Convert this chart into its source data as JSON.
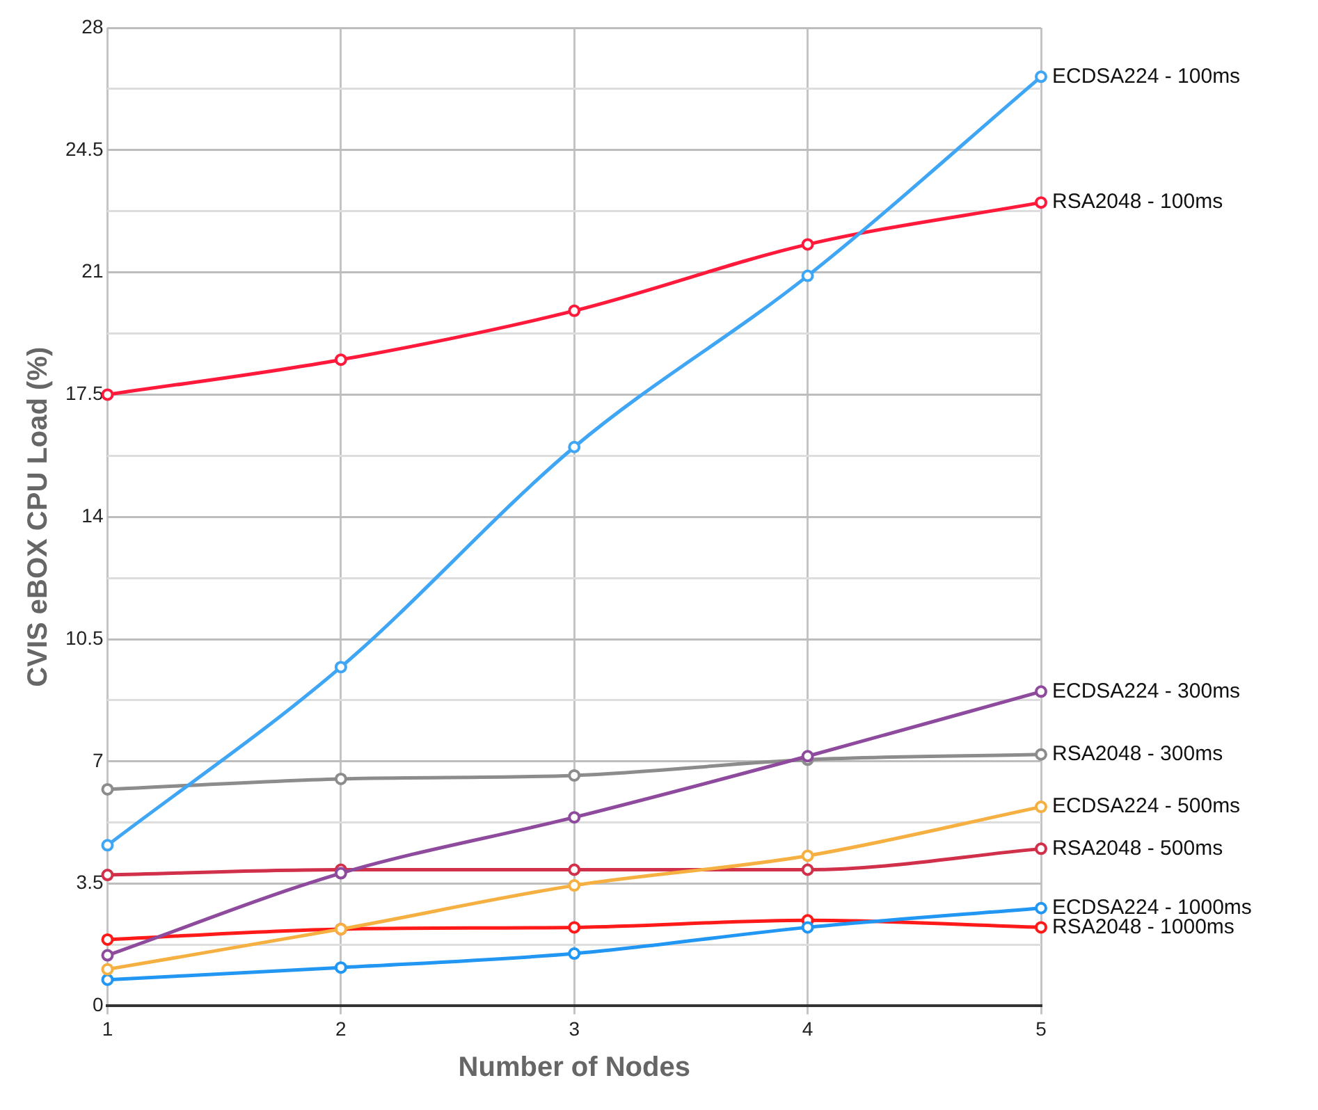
{
  "chart_data": {
    "type": "line",
    "xlabel": "Number of Nodes",
    "ylabel": "CVIS eBOX CPU Load (%)",
    "x": [
      1,
      2,
      3,
      4,
      5
    ],
    "xlim": [
      1,
      5
    ],
    "xticks": [
      1,
      2,
      3,
      4,
      5
    ],
    "ylim": [
      0,
      28
    ],
    "yticks": [
      0,
      {
        "value": 1.75,
        "label": null
      },
      3.5,
      {
        "value": 5.25,
        "label": null
      },
      7,
      {
        "value": 8.75,
        "label": null
      },
      10.5,
      {
        "value": 12.25,
        "label": null
      },
      14,
      {
        "value": 15.75,
        "label": null
      },
      17.5,
      {
        "value": 19.25,
        "label": null
      },
      21,
      {
        "value": 22.75,
        "label": null
      },
      24.5,
      {
        "value": 26.25,
        "label": null
      },
      28
    ],
    "grid": true,
    "legend": false,
    "marker": "circle",
    "line_style": "solid",
    "series": [
      {
        "name": "ECDSA224 - 100ms",
        "color": "#3ea6f5",
        "values": [
          4.6,
          9.7,
          16.0,
          20.9,
          26.6
        ]
      },
      {
        "name": "RSA2048 - 100ms",
        "color": "#ff1a3c",
        "values": [
          17.5,
          18.5,
          19.9,
          21.8,
          23.0
        ]
      },
      {
        "name": "ECDSA224 - 300ms",
        "color": "#8e4a9c",
        "values": [
          1.45,
          3.8,
          5.4,
          7.15,
          9.0
        ]
      },
      {
        "name": "RSA2048 - 300ms",
        "color": "#8c8c8c",
        "values": [
          6.2,
          6.5,
          6.6,
          7.05,
          7.2
        ]
      },
      {
        "name": "ECDSA224 - 500ms",
        "color": "#f5b041",
        "values": [
          1.05,
          2.2,
          3.45,
          4.3,
          5.7
        ]
      },
      {
        "name": "RSA2048 - 500ms",
        "color": "#d0304a",
        "values": [
          3.75,
          3.9,
          3.9,
          3.9,
          4.5
        ]
      },
      {
        "name": "ECDSA224 - 1000ms",
        "color": "#2196f3",
        "values": [
          0.75,
          1.1,
          1.5,
          2.25,
          2.8
        ]
      },
      {
        "name": "RSA2048 - 1000ms",
        "color": "#ff1a1a",
        "values": [
          1.9,
          2.2,
          2.25,
          2.45,
          2.25
        ]
      }
    ]
  }
}
